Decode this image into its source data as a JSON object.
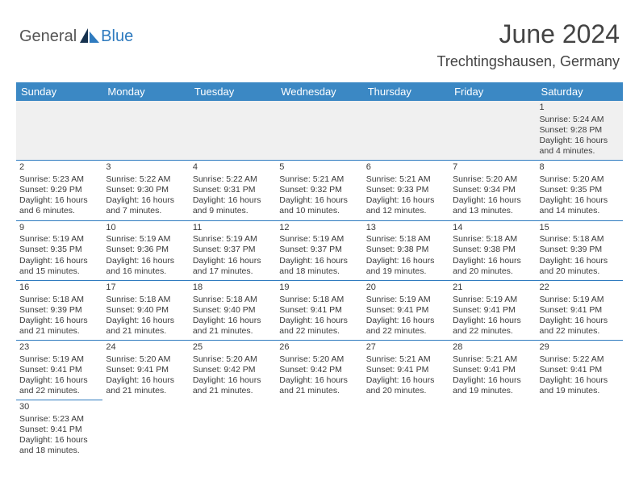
{
  "logo": {
    "part1": "General",
    "part2": "Blue"
  },
  "title": "June 2024",
  "subtitle": "Trechtingshausen, Germany",
  "colors": {
    "header_bg": "#3b88c4",
    "header_text": "#ffffff",
    "rule": "#2f7bbf",
    "text": "#3a3a3a",
    "logo_gray": "#555555",
    "logo_blue": "#2f7bbf",
    "sail_dark": "#16324f",
    "sail_blue": "#2f7bbf"
  },
  "weekdays": [
    "Sunday",
    "Monday",
    "Tuesday",
    "Wednesday",
    "Thursday",
    "Friday",
    "Saturday"
  ],
  "weeks": [
    [
      null,
      null,
      null,
      null,
      null,
      null,
      {
        "n": "1",
        "sr": "Sunrise: 5:24 AM",
        "ss": "Sunset: 9:28 PM",
        "dl": "Daylight: 16 hours and 4 minutes."
      }
    ],
    [
      {
        "n": "2",
        "sr": "Sunrise: 5:23 AM",
        "ss": "Sunset: 9:29 PM",
        "dl": "Daylight: 16 hours and 6 minutes."
      },
      {
        "n": "3",
        "sr": "Sunrise: 5:22 AM",
        "ss": "Sunset: 9:30 PM",
        "dl": "Daylight: 16 hours and 7 minutes."
      },
      {
        "n": "4",
        "sr": "Sunrise: 5:22 AM",
        "ss": "Sunset: 9:31 PM",
        "dl": "Daylight: 16 hours and 9 minutes."
      },
      {
        "n": "5",
        "sr": "Sunrise: 5:21 AM",
        "ss": "Sunset: 9:32 PM",
        "dl": "Daylight: 16 hours and 10 minutes."
      },
      {
        "n": "6",
        "sr": "Sunrise: 5:21 AM",
        "ss": "Sunset: 9:33 PM",
        "dl": "Daylight: 16 hours and 12 minutes."
      },
      {
        "n": "7",
        "sr": "Sunrise: 5:20 AM",
        "ss": "Sunset: 9:34 PM",
        "dl": "Daylight: 16 hours and 13 minutes."
      },
      {
        "n": "8",
        "sr": "Sunrise: 5:20 AM",
        "ss": "Sunset: 9:35 PM",
        "dl": "Daylight: 16 hours and 14 minutes."
      }
    ],
    [
      {
        "n": "9",
        "sr": "Sunrise: 5:19 AM",
        "ss": "Sunset: 9:35 PM",
        "dl": "Daylight: 16 hours and 15 minutes."
      },
      {
        "n": "10",
        "sr": "Sunrise: 5:19 AM",
        "ss": "Sunset: 9:36 PM",
        "dl": "Daylight: 16 hours and 16 minutes."
      },
      {
        "n": "11",
        "sr": "Sunrise: 5:19 AM",
        "ss": "Sunset: 9:37 PM",
        "dl": "Daylight: 16 hours and 17 minutes."
      },
      {
        "n": "12",
        "sr": "Sunrise: 5:19 AM",
        "ss": "Sunset: 9:37 PM",
        "dl": "Daylight: 16 hours and 18 minutes."
      },
      {
        "n": "13",
        "sr": "Sunrise: 5:18 AM",
        "ss": "Sunset: 9:38 PM",
        "dl": "Daylight: 16 hours and 19 minutes."
      },
      {
        "n": "14",
        "sr": "Sunrise: 5:18 AM",
        "ss": "Sunset: 9:38 PM",
        "dl": "Daylight: 16 hours and 20 minutes."
      },
      {
        "n": "15",
        "sr": "Sunrise: 5:18 AM",
        "ss": "Sunset: 9:39 PM",
        "dl": "Daylight: 16 hours and 20 minutes."
      }
    ],
    [
      {
        "n": "16",
        "sr": "Sunrise: 5:18 AM",
        "ss": "Sunset: 9:39 PM",
        "dl": "Daylight: 16 hours and 21 minutes."
      },
      {
        "n": "17",
        "sr": "Sunrise: 5:18 AM",
        "ss": "Sunset: 9:40 PM",
        "dl": "Daylight: 16 hours and 21 minutes."
      },
      {
        "n": "18",
        "sr": "Sunrise: 5:18 AM",
        "ss": "Sunset: 9:40 PM",
        "dl": "Daylight: 16 hours and 21 minutes."
      },
      {
        "n": "19",
        "sr": "Sunrise: 5:18 AM",
        "ss": "Sunset: 9:41 PM",
        "dl": "Daylight: 16 hours and 22 minutes."
      },
      {
        "n": "20",
        "sr": "Sunrise: 5:19 AM",
        "ss": "Sunset: 9:41 PM",
        "dl": "Daylight: 16 hours and 22 minutes."
      },
      {
        "n": "21",
        "sr": "Sunrise: 5:19 AM",
        "ss": "Sunset: 9:41 PM",
        "dl": "Daylight: 16 hours and 22 minutes."
      },
      {
        "n": "22",
        "sr": "Sunrise: 5:19 AM",
        "ss": "Sunset: 9:41 PM",
        "dl": "Daylight: 16 hours and 22 minutes."
      }
    ],
    [
      {
        "n": "23",
        "sr": "Sunrise: 5:19 AM",
        "ss": "Sunset: 9:41 PM",
        "dl": "Daylight: 16 hours and 22 minutes."
      },
      {
        "n": "24",
        "sr": "Sunrise: 5:20 AM",
        "ss": "Sunset: 9:41 PM",
        "dl": "Daylight: 16 hours and 21 minutes."
      },
      {
        "n": "25",
        "sr": "Sunrise: 5:20 AM",
        "ss": "Sunset: 9:42 PM",
        "dl": "Daylight: 16 hours and 21 minutes."
      },
      {
        "n": "26",
        "sr": "Sunrise: 5:20 AM",
        "ss": "Sunset: 9:42 PM",
        "dl": "Daylight: 16 hours and 21 minutes."
      },
      {
        "n": "27",
        "sr": "Sunrise: 5:21 AM",
        "ss": "Sunset: 9:41 PM",
        "dl": "Daylight: 16 hours and 20 minutes."
      },
      {
        "n": "28",
        "sr": "Sunrise: 5:21 AM",
        "ss": "Sunset: 9:41 PM",
        "dl": "Daylight: 16 hours and 19 minutes."
      },
      {
        "n": "29",
        "sr": "Sunrise: 5:22 AM",
        "ss": "Sunset: 9:41 PM",
        "dl": "Daylight: 16 hours and 19 minutes."
      }
    ],
    [
      {
        "n": "30",
        "sr": "Sunrise: 5:23 AM",
        "ss": "Sunset: 9:41 PM",
        "dl": "Daylight: 16 hours and 18 minutes."
      },
      null,
      null,
      null,
      null,
      null,
      null
    ]
  ]
}
